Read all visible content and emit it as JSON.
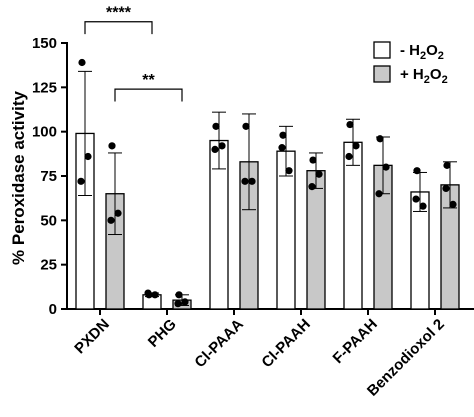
{
  "chart_data": {
    "type": "bar",
    "ylabel": "% Peroxidase activity",
    "ylim": [
      0,
      150
    ],
    "yticks": [
      0,
      25,
      50,
      75,
      100,
      125,
      150
    ],
    "grid": false,
    "legend_position": "top-right",
    "categories": [
      "PXDN",
      "PHG",
      "Cl-PAAA",
      "Cl-PAAH",
      "F-PAAH",
      "Benzodioxol 2"
    ],
    "series": [
      {
        "name": "- H2O2",
        "color": "#ffffff",
        "values": [
          99,
          8,
          95,
          89,
          94,
          66
        ],
        "errors": [
          35,
          1,
          16,
          14,
          13,
          11
        ],
        "points": [
          [
            139,
            86,
            72
          ],
          [
            8,
            8,
            9
          ],
          [
            103,
            92,
            90
          ],
          [
            98,
            78,
            91
          ],
          [
            104,
            92,
            86
          ],
          [
            78,
            58,
            62
          ]
        ]
      },
      {
        "name": "+ H2O2",
        "color": "#c8c8c8",
        "values": [
          65,
          5,
          83,
          78,
          81,
          70
        ],
        "errors": [
          23,
          3,
          27,
          10,
          16,
          13
        ],
        "points": [
          [
            92,
            54,
            50
          ],
          [
            8,
            4,
            3
          ],
          [
            103,
            72,
            72
          ],
          [
            84,
            76,
            69
          ],
          [
            96,
            80,
            65
          ],
          [
            81,
            59,
            68
          ]
        ]
      }
    ],
    "legend": {
      "entries": [
        {
          "prefix": "- H",
          "sub": "2",
          "mid": "O",
          "sub2": "2"
        },
        {
          "prefix": "+ H",
          "sub": "2",
          "mid": "O",
          "sub2": "2"
        }
      ]
    },
    "annotations": [
      {
        "label": "****",
        "from_category": 0,
        "from_series": 0,
        "to_category": 1,
        "to_series": 0,
        "level": 162
      },
      {
        "label": "**",
        "from_category": 0,
        "from_series": 1,
        "to_category": 1,
        "to_series": 1,
        "level": 124
      }
    ]
  }
}
